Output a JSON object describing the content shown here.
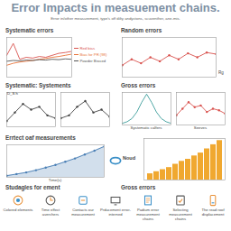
{
  "header": {
    "title": "Error Impacts in measuement chains.",
    "subtitle": "Error in/other measurement, type's off dilty andyctons, scuventher, ane-mis."
  },
  "headings": [
    "Systematic: Systements",
    "Gross errors",
    "Studagles for ement",
    "Gross errors"
  ],
  "chart_data": [
    {
      "type": "line",
      "title": "Systematic errors",
      "x": [
        0,
        1,
        2,
        3,
        4,
        5,
        6,
        7,
        8,
        9,
        10
      ],
      "series": [
        {
          "name": "Red bias",
          "color": "#d9534f",
          "values": [
            0.55,
            0.85,
            0.45,
            0.5,
            0.48,
            0.52,
            0.5,
            0.55,
            0.6,
            0.62,
            0.65
          ]
        },
        {
          "name": "Bias for PR (98)",
          "color": "#e8743b",
          "values": [
            0.3,
            0.35,
            0.38,
            0.4,
            0.42,
            0.45,
            0.47,
            0.5,
            0.52,
            0.55,
            0.58
          ]
        },
        {
          "name": "Powder Broced",
          "color": "#555555",
          "values": [
            0.4,
            0.42,
            0.41,
            0.43,
            0.42,
            0.44,
            0.43,
            0.45,
            0.44,
            0.46,
            0.45
          ]
        }
      ],
      "xlim": [
        0,
        10
      ],
      "ylim": [
        0,
        1
      ],
      "legend": "right",
      "tick_labels": false
    },
    {
      "type": "line",
      "title": "Random errors",
      "xlabel": "Rg",
      "x": [
        0,
        1,
        2,
        3,
        4,
        5,
        6,
        7,
        8,
        9,
        10
      ],
      "values": [
        0.3,
        0.45,
        0.35,
        0.5,
        0.4,
        0.55,
        0.45,
        0.6,
        0.5,
        0.62,
        0.58
      ],
      "color": "#d9534f",
      "marker": "circle",
      "xlim": [
        0,
        10
      ],
      "ylim": [
        0,
        1
      ],
      "tick_labels": false
    },
    {
      "type": "line",
      "annotations": [
        "D_S h"
      ],
      "x": [
        0,
        1,
        2,
        3,
        4,
        5,
        6
      ],
      "values": [
        0.2,
        0.5,
        0.8,
        0.6,
        0.7,
        0.4,
        0.3
      ],
      "color": "#444444",
      "marker": "circle",
      "xlim": [
        0,
        6
      ],
      "ylim": [
        0,
        1.2
      ],
      "tick_labels": false
    },
    {
      "type": "line",
      "x": [
        0,
        1,
        2,
        3,
        4,
        5,
        6
      ],
      "values": [
        0.3,
        0.4,
        0.7,
        0.9,
        0.5,
        0.6,
        0.35
      ],
      "color": "#444444",
      "marker": "circle",
      "xlim": [
        0,
        6
      ],
      "ylim": [
        0,
        1.2
      ],
      "tick_labels": false
    },
    {
      "type": "line",
      "xlabel": "Systematic calfers",
      "x": [
        0,
        1,
        2,
        3,
        4,
        5,
        6,
        7,
        8,
        9,
        10
      ],
      "values": [
        0.05,
        0.1,
        0.2,
        0.4,
        0.7,
        0.95,
        0.7,
        0.4,
        0.2,
        0.1,
        0.05
      ],
      "color": "#3c9d9b",
      "xlim": [
        0,
        10
      ],
      "ylim": [
        0,
        1
      ],
      "tick_labels": false
    },
    {
      "type": "line",
      "xlabel": "Seeves",
      "x": [
        0,
        1,
        2,
        3,
        4,
        5,
        6,
        7,
        8
      ],
      "values": [
        0.3,
        0.5,
        0.7,
        0.55,
        0.6,
        0.4,
        0.5,
        0.45,
        0.35
      ],
      "color": "#d9534f",
      "marker": "circle",
      "xlim": [
        0,
        8
      ],
      "ylim": [
        0,
        1
      ],
      "tick_labels": false
    },
    {
      "type": "area",
      "title": "Errtect oaf measurements",
      "xlabel": "Time(s)",
      "x": [
        0,
        1,
        2,
        3,
        4,
        5,
        6,
        7,
        8,
        9,
        10
      ],
      "values": [
        0.05,
        0.1,
        0.15,
        0.22,
        0.3,
        0.38,
        0.48,
        0.58,
        0.7,
        0.82,
        0.95
      ],
      "color": "#4a7fb5",
      "marker": "circle",
      "xlim": [
        0,
        10
      ],
      "ylim": [
        0,
        1
      ],
      "tick_labels": false
    },
    {
      "type": "bar",
      "ylabel": "Noud",
      "categories": [
        null,
        null,
        null,
        null,
        null,
        null,
        null,
        null,
        null,
        null,
        null,
        null
      ],
      "values": [
        0.15,
        0.2,
        0.25,
        0.3,
        0.38,
        0.45,
        0.5,
        0.58,
        0.65,
        0.75,
        0.85,
        0.95
      ],
      "color": "#f0a830",
      "ylim": [
        0,
        1
      ],
      "tick_labels": false
    }
  ],
  "strategies": [
    "Colored elements",
    "Time effect averchers",
    "Contacts our measurement",
    "Prducement error-interned",
    "Padium error measurement chains",
    "Selecting measurement chains",
    "The read roof displacement"
  ]
}
